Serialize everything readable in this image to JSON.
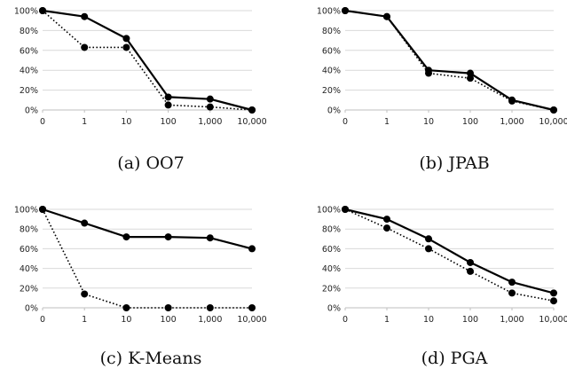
{
  "chart_data": [
    {
      "type": "line",
      "caption": "(a) OO7",
      "categories": [
        "0",
        "1",
        "10",
        "100",
        "1,000",
        "10,000"
      ],
      "y_ticks": [
        "0%",
        "20%",
        "40%",
        "60%",
        "80%",
        "100%"
      ],
      "ylim": [
        0,
        100
      ],
      "grid": true,
      "series": [
        {
          "style": "solid",
          "values": [
            100,
            94,
            72,
            13,
            11,
            0
          ]
        },
        {
          "style": "dotted",
          "values": [
            100,
            63,
            63,
            5,
            3,
            0
          ]
        }
      ]
    },
    {
      "type": "line",
      "caption": "(b) JPAB",
      "categories": [
        "0",
        "1",
        "10",
        "100",
        "1,000",
        "10,000"
      ],
      "y_ticks": [
        "0%",
        "20%",
        "40%",
        "60%",
        "80%",
        "100%"
      ],
      "ylim": [
        0,
        100
      ],
      "grid": true,
      "series": [
        {
          "style": "solid",
          "values": [
            100,
            94,
            40,
            37,
            10,
            0
          ]
        },
        {
          "style": "dotted",
          "values": [
            100,
            94,
            37,
            32,
            9,
            0
          ]
        }
      ]
    },
    {
      "type": "line",
      "caption": "(c) K-Means",
      "categories": [
        "0",
        "1",
        "10",
        "100",
        "1,000",
        "10,000"
      ],
      "y_ticks": [
        "0%",
        "20%",
        "40%",
        "60%",
        "80%",
        "100%"
      ],
      "ylim": [
        0,
        100
      ],
      "grid": true,
      "series": [
        {
          "style": "solid",
          "values": [
            100,
            86,
            72,
            72,
            71,
            60
          ]
        },
        {
          "style": "dotted",
          "values": [
            100,
            14,
            0,
            0,
            0,
            0
          ]
        }
      ]
    },
    {
      "type": "line",
      "caption": "(d) PGA",
      "categories": [
        "0",
        "1",
        "10",
        "100",
        "1,000",
        "10,000"
      ],
      "y_ticks": [
        "0%",
        "20%",
        "40%",
        "60%",
        "80%",
        "100%"
      ],
      "ylim": [
        0,
        100
      ],
      "grid": true,
      "series": [
        {
          "style": "solid",
          "values": [
            100,
            90,
            70,
            46,
            26,
            15
          ]
        },
        {
          "style": "dotted",
          "values": [
            100,
            81,
            60,
            37,
            15,
            7
          ]
        }
      ]
    }
  ],
  "colors": {
    "line": "#000000",
    "grid": "#d9d9d9",
    "axis": "#bfbfbf"
  }
}
